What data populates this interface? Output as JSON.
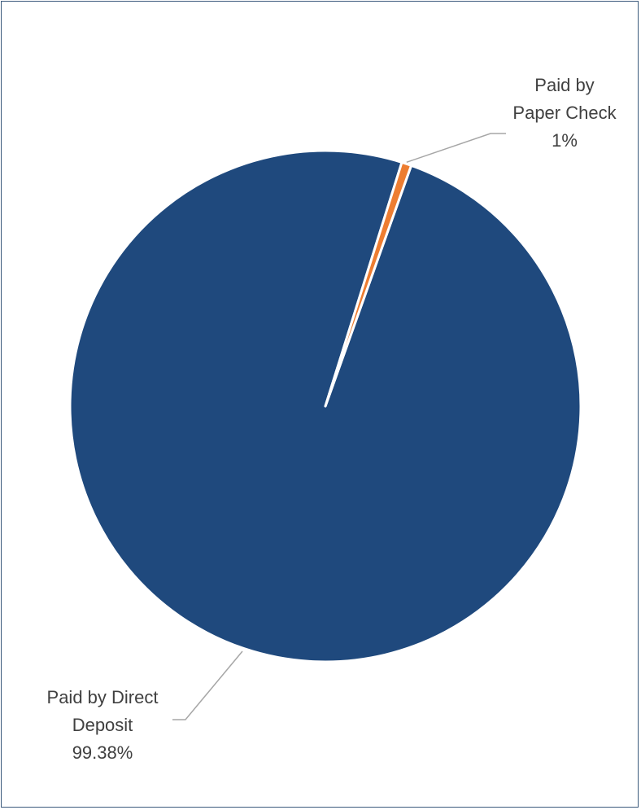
{
  "chart_data": {
    "type": "pie",
    "title": "",
    "slices": [
      {
        "label_lines": [
          "Paid by Direct",
          "Deposit"
        ],
        "percent_label": "99.38%",
        "value": 99.38,
        "color": "#1f497d"
      },
      {
        "label_lines": [
          "Paid by",
          "Paper Check"
        ],
        "percent_label": "1%",
        "value": 0.62,
        "color": "#ed7d31"
      }
    ],
    "legend": "none",
    "leader_line_color": "#a6a6a6"
  }
}
